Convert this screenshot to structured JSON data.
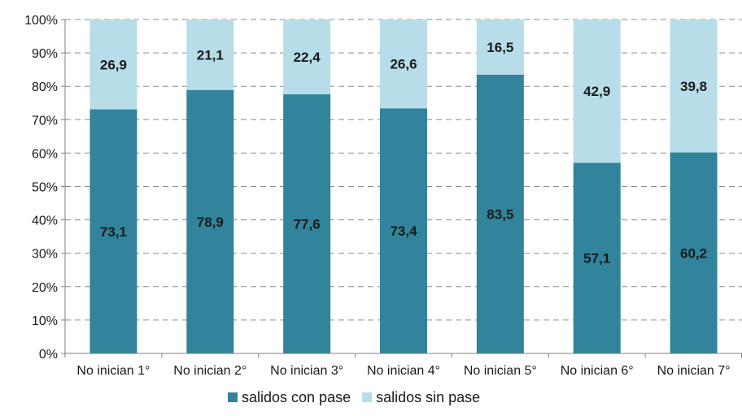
{
  "chart_data": {
    "type": "bar",
    "stacked": true,
    "categories": [
      "No inician 1°",
      "No inician 2°",
      "No inician 3°",
      "No inician 4°",
      "No inician 5°",
      "No inician 6°",
      "No inician 7°"
    ],
    "series": [
      {
        "name": "salidos con pase",
        "color": "#31849b",
        "values": [
          73.1,
          78.9,
          77.6,
          73.4,
          83.5,
          57.1,
          60.2
        ],
        "labels": [
          "73,1",
          "78,9",
          "77,6",
          "73,4",
          "83,5",
          "57,1",
          "60,2"
        ]
      },
      {
        "name": "salidos sin pase",
        "color": "#b7dde8",
        "values": [
          26.9,
          21.1,
          22.4,
          26.6,
          16.5,
          42.9,
          39.8
        ],
        "labels": [
          "26,9",
          "21,1",
          "22,4",
          "26,6",
          "16,5",
          "42,9",
          "39,8"
        ]
      }
    ],
    "ylim": [
      0,
      100
    ],
    "yticks": [
      0,
      10,
      20,
      30,
      40,
      50,
      60,
      70,
      80,
      90,
      100
    ],
    "ytick_labels": [
      "0%",
      "10%",
      "20%",
      "30%",
      "40%",
      "50%",
      "60%",
      "70%",
      "80%",
      "90%",
      "100%"
    ],
    "grid": true,
    "legend_position": "bottom"
  }
}
